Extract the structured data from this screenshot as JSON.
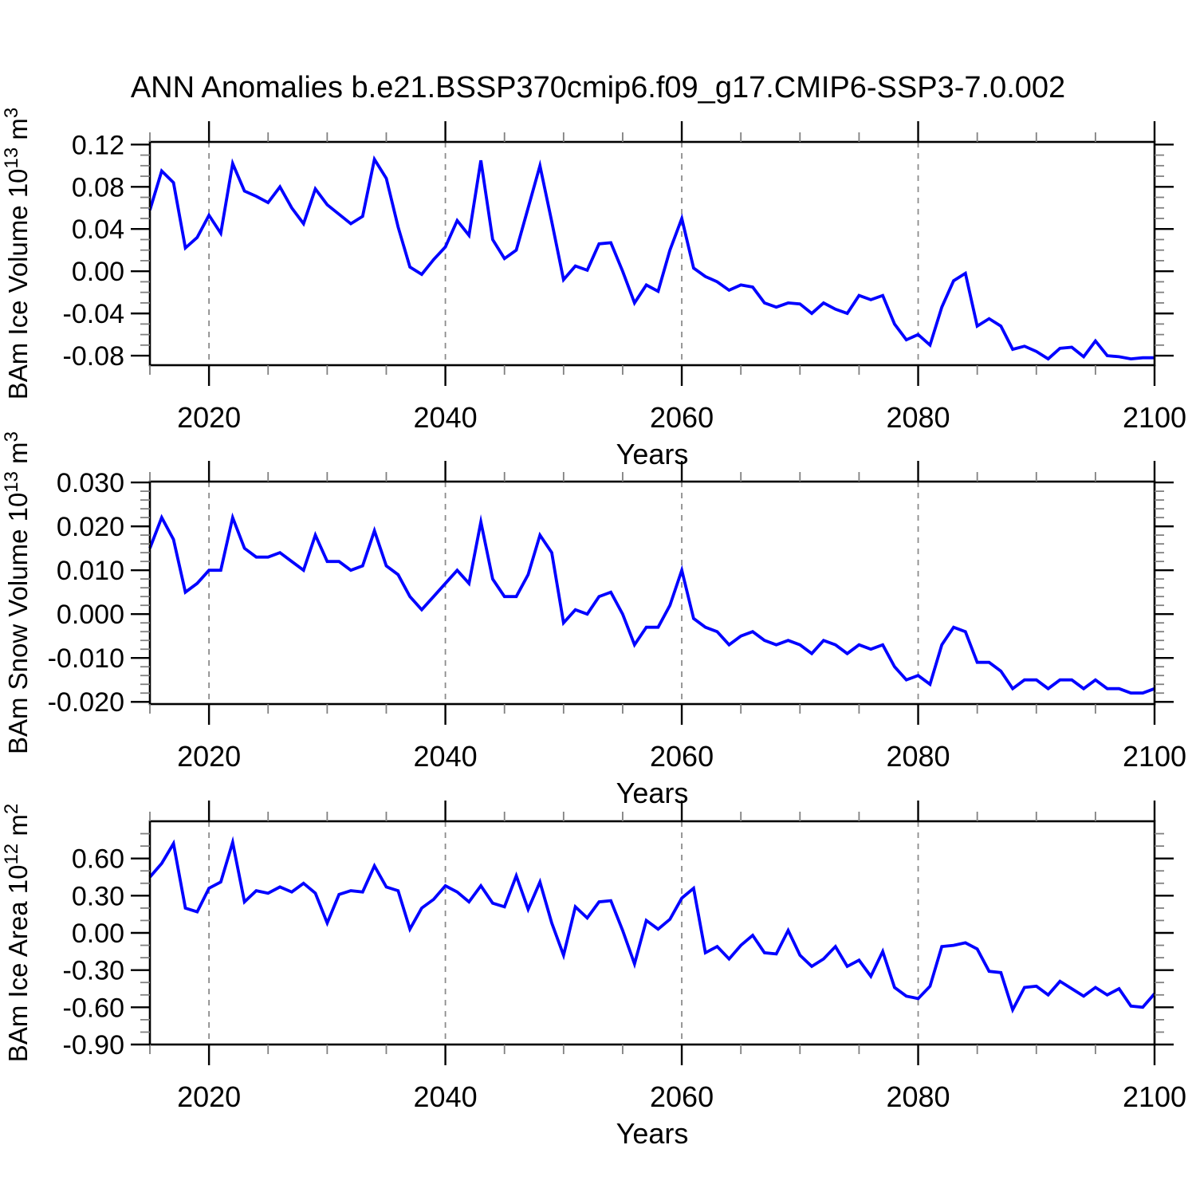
{
  "title": "ANN Anomalies b.e21.BSSP370cmip6.f09_g17.CMIP6-SSP3-7.0.002",
  "colors": {
    "line": "#0000ff",
    "frame": "#000000",
    "gridline": "#8c8c8c",
    "minor_tick": "#808080",
    "text": "#000000",
    "background": "#ffffff"
  },
  "x_axis": {
    "label": "Years",
    "start": 2015,
    "end": 2100,
    "major_ticks": [
      2020,
      2040,
      2060,
      2080,
      2100
    ],
    "major_tick_labels": [
      "2020",
      "2040",
      "2060",
      "2080",
      "2100"
    ],
    "minor_step": 5,
    "gridline_years": [
      2020,
      2040,
      2060,
      2080
    ]
  },
  "chart_data": [
    {
      "type": "line",
      "title": "",
      "ylabel": "BAm Ice Volume 10^13 m^3",
      "ylabel_parts": [
        {
          "text": "BAm Ice Volume 10",
          "sup": false
        },
        {
          "text": "13",
          "sup": true
        },
        {
          "text": " m",
          "sup": false
        },
        {
          "text": "3",
          "sup": true
        }
      ],
      "xlabel": "Years",
      "x_start": 2015,
      "x_end": 2100,
      "x_step": 1,
      "ylim": [
        -0.089,
        0.1225
      ],
      "ytick_values": [
        0.12,
        0.08,
        0.04,
        0.0,
        -0.04,
        -0.08
      ],
      "ytick_labels": [
        "0.12",
        "0.08",
        "0.04",
        "0.00",
        "-0.04",
        "-0.08"
      ],
      "y_minor_step": 0.01,
      "grid": "vertical-dashed",
      "legend": "none",
      "values": [
        0.058,
        0.095,
        0.084,
        0.022,
        0.032,
        0.053,
        0.036,
        0.102,
        0.076,
        0.071,
        0.065,
        0.08,
        0.06,
        0.045,
        0.078,
        0.063,
        0.054,
        0.045,
        0.052,
        0.106,
        0.088,
        0.042,
        0.004,
        -0.003,
        0.011,
        0.023,
        0.048,
        0.034,
        0.105,
        0.03,
        0.012,
        0.02,
        0.06,
        0.1,
        0.047,
        -0.008,
        0.005,
        0.001,
        0.026,
        0.027,
        0.0,
        -0.03,
        -0.013,
        -0.019,
        0.02,
        0.05,
        0.003,
        -0.005,
        -0.01,
        -0.018,
        -0.013,
        -0.015,
        -0.03,
        -0.034,
        -0.03,
        -0.031,
        -0.04,
        -0.03,
        -0.036,
        -0.04,
        -0.023,
        -0.027,
        -0.023,
        -0.05,
        -0.065,
        -0.06,
        -0.07,
        -0.034,
        -0.009,
        -0.002,
        -0.052,
        -0.045,
        -0.052,
        -0.074,
        -0.071,
        -0.076,
        -0.083,
        -0.073,
        -0.072,
        -0.081,
        -0.066,
        -0.08,
        -0.081,
        -0.083,
        -0.082,
        -0.082
      ]
    },
    {
      "type": "line",
      "title": "",
      "ylabel": "BAm Snow Volume 10^13 m^3",
      "ylabel_parts": [
        {
          "text": "BAm Snow Volume 10",
          "sup": false
        },
        {
          "text": "13",
          "sup": true
        },
        {
          "text": " m",
          "sup": false
        },
        {
          "text": "3",
          "sup": true
        }
      ],
      "xlabel": "Years",
      "x_start": 2015,
      "x_end": 2100,
      "x_step": 1,
      "ylim": [
        -0.0205,
        0.0302
      ],
      "ytick_values": [
        0.03,
        0.02,
        0.01,
        0.0,
        -0.01,
        -0.02
      ],
      "ytick_labels": [
        "0.030",
        "0.020",
        "0.010",
        "0.000",
        "-0.010",
        "-0.020"
      ],
      "y_minor_step": 0.002,
      "grid": "vertical-dashed",
      "legend": "none",
      "values": [
        0.015,
        0.022,
        0.017,
        0.005,
        0.007,
        0.01,
        0.01,
        0.022,
        0.015,
        0.013,
        0.013,
        0.014,
        0.012,
        0.01,
        0.018,
        0.012,
        0.012,
        0.01,
        0.011,
        0.019,
        0.011,
        0.009,
        0.004,
        0.001,
        0.004,
        0.007,
        0.01,
        0.007,
        0.021,
        0.008,
        0.004,
        0.004,
        0.009,
        0.018,
        0.014,
        -0.002,
        0.001,
        0.0,
        0.004,
        0.005,
        0.0,
        -0.007,
        -0.003,
        -0.003,
        0.002,
        0.01,
        -0.001,
        -0.003,
        -0.004,
        -0.007,
        -0.005,
        -0.004,
        -0.006,
        -0.007,
        -0.006,
        -0.007,
        -0.009,
        -0.006,
        -0.007,
        -0.009,
        -0.007,
        -0.008,
        -0.007,
        -0.012,
        -0.015,
        -0.014,
        -0.016,
        -0.007,
        -0.003,
        -0.004,
        -0.011,
        -0.011,
        -0.013,
        -0.017,
        -0.015,
        -0.015,
        -0.017,
        -0.015,
        -0.015,
        -0.017,
        -0.015,
        -0.017,
        -0.017,
        -0.018,
        -0.018,
        -0.017
      ]
    },
    {
      "type": "line",
      "title": "",
      "ylabel": "BAm Ice Area 10^12 m^2",
      "ylabel_parts": [
        {
          "text": "BAm Ice Area 10",
          "sup": false
        },
        {
          "text": "12",
          "sup": true
        },
        {
          "text": " m",
          "sup": false
        },
        {
          "text": "2",
          "sup": true
        }
      ],
      "xlabel": "Years",
      "x_start": 2015,
      "x_end": 2100,
      "x_step": 1,
      "ylim": [
        -0.9,
        0.9
      ],
      "ytick_values": [
        0.6,
        0.3,
        0.0,
        -0.3,
        -0.6,
        -0.9
      ],
      "ytick_labels": [
        "0.60",
        "0.30",
        "0.00",
        "-0.30",
        "-0.60",
        "-0.90"
      ],
      "y_minor_step": 0.1,
      "grid": "vertical-dashed",
      "legend": "none",
      "values": [
        0.45,
        0.56,
        0.72,
        0.2,
        0.17,
        0.36,
        0.41,
        0.73,
        0.25,
        0.34,
        0.32,
        0.37,
        0.33,
        0.4,
        0.32,
        0.08,
        0.31,
        0.34,
        0.33,
        0.54,
        0.37,
        0.34,
        0.03,
        0.2,
        0.27,
        0.38,
        0.33,
        0.25,
        0.38,
        0.24,
        0.21,
        0.46,
        0.19,
        0.41,
        0.08,
        -0.18,
        0.21,
        0.12,
        0.25,
        0.26,
        0.02,
        -0.25,
        0.1,
        0.03,
        0.11,
        0.28,
        0.36,
        -0.16,
        -0.11,
        -0.21,
        -0.1,
        -0.02,
        -0.16,
        -0.17,
        0.02,
        -0.18,
        -0.27,
        -0.21,
        -0.11,
        -0.27,
        -0.22,
        -0.35,
        -0.15,
        -0.44,
        -0.51,
        -0.53,
        -0.43,
        -0.11,
        -0.1,
        -0.08,
        -0.13,
        -0.31,
        -0.32,
        -0.62,
        -0.44,
        -0.43,
        -0.5,
        -0.39,
        -0.45,
        -0.51,
        -0.44,
        -0.5,
        -0.45,
        -0.59,
        -0.6,
        -0.49
      ]
    }
  ]
}
